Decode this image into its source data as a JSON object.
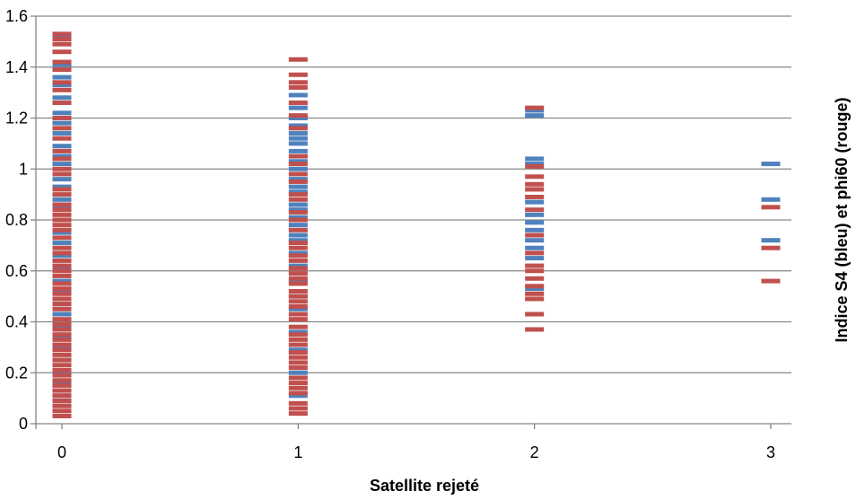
{
  "chart_data": {
    "type": "scatter",
    "title": "",
    "xlabel": "Satellite rejeté",
    "ylabel": "Indice S4 (bleu) et phi60 (rouge)",
    "x_ticks": [
      "0",
      "1",
      "2",
      "3"
    ],
    "y_ticks": [
      "0",
      "0.2",
      "0.4",
      "0.6",
      "0.8",
      "1",
      "1.2",
      "1.4",
      "1.6"
    ],
    "xlim": [
      0,
      3
    ],
    "ylim": [
      0,
      1.6
    ],
    "grid": "horizontal",
    "legend": "none",
    "marker": "dash",
    "series": [
      {
        "color": "#4f81bd",
        "points": [
          [
            0,
            0.07
          ],
          [
            0,
            0.11
          ],
          [
            0,
            0.16
          ],
          [
            0,
            0.2
          ],
          [
            0,
            0.25
          ],
          [
            0,
            0.3
          ],
          [
            0,
            0.34
          ],
          [
            0,
            0.38
          ],
          [
            0,
            0.43
          ],
          [
            0,
            0.47
          ],
          [
            0,
            0.52
          ],
          [
            0,
            0.56
          ],
          [
            0,
            0.61
          ],
          [
            0,
            0.66
          ],
          [
            0,
            0.71
          ],
          [
            0,
            0.75
          ],
          [
            0,
            0.8
          ],
          [
            0,
            0.85
          ],
          [
            0,
            0.88
          ],
          [
            0,
            0.93
          ],
          [
            0,
            0.96
          ],
          [
            0,
            1.02
          ],
          [
            0,
            1.05
          ],
          [
            0,
            1.09
          ],
          [
            0,
            1.14
          ],
          [
            0,
            1.18
          ],
          [
            0,
            1.22
          ],
          [
            0,
            1.28
          ],
          [
            0,
            1.33
          ],
          [
            0,
            1.36
          ],
          [
            0,
            1.41
          ],
          [
            0,
            1.52
          ],
          [
            1,
            0.11
          ],
          [
            1,
            0.2
          ],
          [
            1,
            0.29
          ],
          [
            1,
            0.36
          ],
          [
            1,
            0.45
          ],
          [
            1,
            0.5
          ],
          [
            1,
            0.56
          ],
          [
            1,
            0.62
          ],
          [
            1,
            0.67
          ],
          [
            1,
            0.72
          ],
          [
            1,
            0.74
          ],
          [
            1,
            0.78
          ],
          [
            1,
            0.81
          ],
          [
            1,
            0.84
          ],
          [
            1,
            0.86
          ],
          [
            1,
            0.91
          ],
          [
            1,
            0.93
          ],
          [
            1,
            0.96
          ],
          [
            1,
            1.0
          ],
          [
            1,
            1.03
          ],
          [
            1,
            1.07
          ],
          [
            1,
            1.1
          ],
          [
            1,
            1.12
          ],
          [
            1,
            1.14
          ],
          [
            1,
            1.17
          ],
          [
            1,
            1.2
          ],
          [
            1,
            1.24
          ],
          [
            1,
            1.29
          ],
          [
            2,
            0.53
          ],
          [
            2,
            0.65
          ],
          [
            2,
            0.69
          ],
          [
            2,
            0.72
          ],
          [
            2,
            0.76
          ],
          [
            2,
            0.79
          ],
          [
            2,
            0.82
          ],
          [
            2,
            0.87
          ],
          [
            2,
            1.02
          ],
          [
            2,
            1.04
          ],
          [
            2,
            1.21
          ],
          [
            2,
            1.23
          ],
          [
            3,
            0.72
          ],
          [
            3,
            0.88
          ],
          [
            3,
            1.02
          ]
        ]
      },
      {
        "color": "#c0504d",
        "points": [
          [
            0,
            0.03
          ],
          [
            0,
            0.05
          ],
          [
            0,
            0.07
          ],
          [
            0,
            0.09
          ],
          [
            0,
            0.11
          ],
          [
            0,
            0.13
          ],
          [
            0,
            0.15
          ],
          [
            0,
            0.17
          ],
          [
            0,
            0.19
          ],
          [
            0,
            0.21
          ],
          [
            0,
            0.23
          ],
          [
            0,
            0.25
          ],
          [
            0,
            0.27
          ],
          [
            0,
            0.29
          ],
          [
            0,
            0.31
          ],
          [
            0,
            0.33
          ],
          [
            0,
            0.35
          ],
          [
            0,
            0.37
          ],
          [
            0,
            0.39
          ],
          [
            0,
            0.41
          ],
          [
            0,
            0.45
          ],
          [
            0,
            0.47
          ],
          [
            0,
            0.49
          ],
          [
            0,
            0.51
          ],
          [
            0,
            0.53
          ],
          [
            0,
            0.55
          ],
          [
            0,
            0.58
          ],
          [
            0,
            0.6
          ],
          [
            0,
            0.62
          ],
          [
            0,
            0.64
          ],
          [
            0,
            0.67
          ],
          [
            0,
            0.69
          ],
          [
            0,
            0.73
          ],
          [
            0,
            0.76
          ],
          [
            0,
            0.78
          ],
          [
            0,
            0.8
          ],
          [
            0,
            0.82
          ],
          [
            0,
            0.84
          ],
          [
            0,
            0.86
          ],
          [
            0,
            0.9
          ],
          [
            0,
            0.92
          ],
          [
            0,
            0.98
          ],
          [
            0,
            1.0
          ],
          [
            0,
            1.04
          ],
          [
            0,
            1.07
          ],
          [
            0,
            1.12
          ],
          [
            0,
            1.16
          ],
          [
            0,
            1.2
          ],
          [
            0,
            1.26
          ],
          [
            0,
            1.31
          ],
          [
            0,
            1.34
          ],
          [
            0,
            1.39
          ],
          [
            0,
            1.42
          ],
          [
            0,
            1.46
          ],
          [
            0,
            1.49
          ],
          [
            0,
            1.51
          ],
          [
            0,
            1.53
          ],
          [
            1,
            0.04
          ],
          [
            1,
            0.06
          ],
          [
            1,
            0.08
          ],
          [
            1,
            0.12
          ],
          [
            1,
            0.14
          ],
          [
            1,
            0.16
          ],
          [
            1,
            0.18
          ],
          [
            1,
            0.22
          ],
          [
            1,
            0.24
          ],
          [
            1,
            0.26
          ],
          [
            1,
            0.28
          ],
          [
            1,
            0.31
          ],
          [
            1,
            0.33
          ],
          [
            1,
            0.35
          ],
          [
            1,
            0.38
          ],
          [
            1,
            0.41
          ],
          [
            1,
            0.43
          ],
          [
            1,
            0.46
          ],
          [
            1,
            0.48
          ],
          [
            1,
            0.5
          ],
          [
            1,
            0.52
          ],
          [
            1,
            0.55
          ],
          [
            1,
            0.57
          ],
          [
            1,
            0.59
          ],
          [
            1,
            0.61
          ],
          [
            1,
            0.64
          ],
          [
            1,
            0.66
          ],
          [
            1,
            0.69
          ],
          [
            1,
            0.71
          ],
          [
            1,
            0.76
          ],
          [
            1,
            0.8
          ],
          [
            1,
            0.83
          ],
          [
            1,
            0.88
          ],
          [
            1,
            0.9
          ],
          [
            1,
            0.95
          ],
          [
            1,
            0.98
          ],
          [
            1,
            1.02
          ],
          [
            1,
            1.05
          ],
          [
            1,
            1.16
          ],
          [
            1,
            1.21
          ],
          [
            1,
            1.26
          ],
          [
            1,
            1.32
          ],
          [
            1,
            1.34
          ],
          [
            1,
            1.37
          ],
          [
            1,
            1.43
          ],
          [
            2,
            0.37
          ],
          [
            2,
            0.43
          ],
          [
            2,
            0.49
          ],
          [
            2,
            0.51
          ],
          [
            2,
            0.54
          ],
          [
            2,
            0.57
          ],
          [
            2,
            0.6
          ],
          [
            2,
            0.62
          ],
          [
            2,
            0.67
          ],
          [
            2,
            0.74
          ],
          [
            2,
            0.84
          ],
          [
            2,
            0.89
          ],
          [
            2,
            0.92
          ],
          [
            2,
            0.94
          ],
          [
            2,
            0.97
          ],
          [
            2,
            1.01
          ],
          [
            2,
            1.24
          ],
          [
            3,
            0.56
          ],
          [
            3,
            0.69
          ],
          [
            3,
            0.85
          ]
        ]
      }
    ]
  }
}
